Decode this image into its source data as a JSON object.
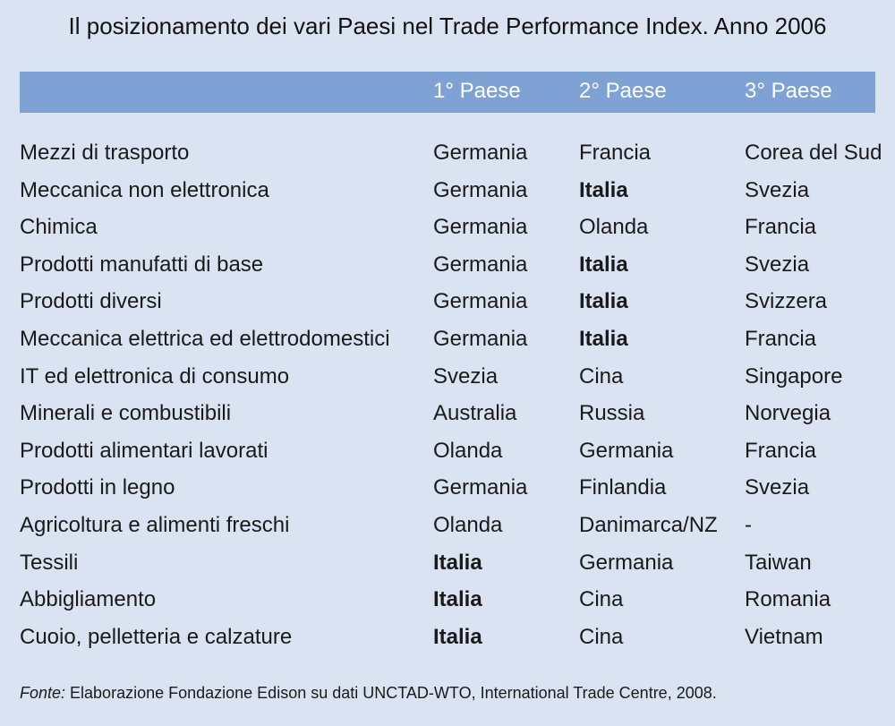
{
  "title": "Il posizionamento dei vari Paesi nel Trade Performance Index. Anno 2006",
  "columns": [
    "",
    "1° Paese",
    "2° Paese",
    "3° Paese"
  ],
  "rows": [
    [
      "Mezzi di trasporto",
      "Germania",
      "Francia",
      "Corea del Sud"
    ],
    [
      "Meccanica non elettronica",
      "Germania",
      "Italia",
      "Svezia"
    ],
    [
      "Chimica",
      "Germania",
      "Olanda",
      "Francia"
    ],
    [
      "Prodotti manufatti di base",
      "Germania",
      "Italia",
      "Svezia"
    ],
    [
      "Prodotti diversi",
      "Germania",
      "Italia",
      "Svizzera"
    ],
    [
      "Meccanica elettrica ed elettrodomestici",
      "Germania",
      "Italia",
      "Francia"
    ],
    [
      "IT ed elettronica di consumo",
      "Svezia",
      "Cina",
      "Singapore"
    ],
    [
      "Minerali e combustibili",
      "Australia",
      "Russia",
      "Norvegia"
    ],
    [
      "Prodotti alimentari lavorati",
      "Olanda",
      "Germania",
      "Francia"
    ],
    [
      "Prodotti in legno",
      "Germania",
      "Finlandia",
      "Svezia"
    ],
    [
      "Agricoltura e alimenti freschi",
      "Olanda",
      "Danimarca/NZ",
      "-"
    ],
    [
      "Tessili",
      "Italia",
      "Germania",
      "Taiwan"
    ],
    [
      "Abbigliamento",
      "Italia",
      "Cina",
      "Romania"
    ],
    [
      "Cuoio, pelletteria e calzature",
      "Italia",
      "Cina",
      "Vietnam"
    ]
  ],
  "footer": {
    "label": "Fonte:",
    "text": " Elaborazione Fondazione Edison su dati UNCTAD-WTO, International Trade Centre, 2008."
  },
  "colors": {
    "panel_background": "#d9e3f2",
    "header_band": "#7ea2d3",
    "header_text": "#ffffff"
  }
}
